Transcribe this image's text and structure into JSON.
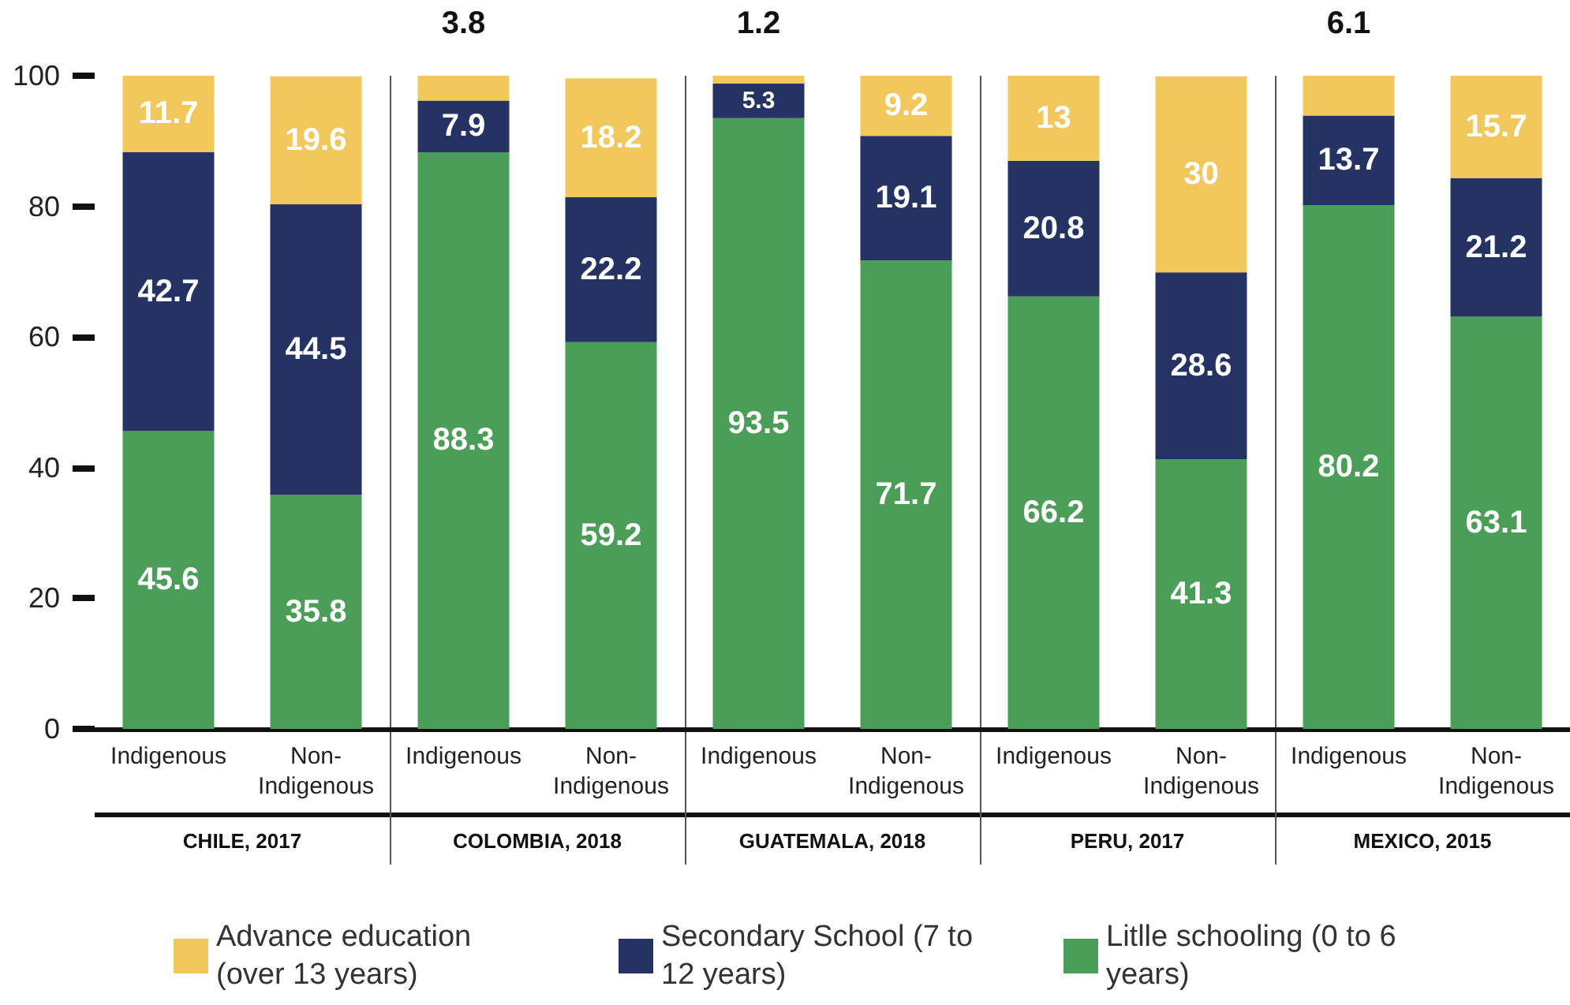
{
  "chart_data": {
    "type": "bar",
    "stacked": true,
    "data_labels": true,
    "grid": false,
    "legend": "bottom",
    "categories": [
      "Indigenous",
      "Non-Indigenous",
      "Indigenous",
      "Non-Indigenous",
      "Indigenous",
      "Non-Indigenous",
      "Indigenous",
      "Non-Indigenous",
      "Indigenous",
      "Non-Indigenous"
    ],
    "series": [
      {
        "name": "Litlle schooling (0 to 6 years)",
        "color": "#4a9e57",
        "values": [
          45.6,
          35.8,
          88.3,
          59.2,
          93.5,
          71.7,
          66.2,
          41.3,
          80.2,
          63.1
        ]
      },
      {
        "name": "Secondary School (7 to 12 years)",
        "color": "#253264",
        "values": [
          42.7,
          44.5,
          7.9,
          22.2,
          5.3,
          19.1,
          20.8,
          28.6,
          13.7,
          21.2
        ]
      },
      {
        "name": "Advance education (over 13 years)",
        "color": "#f2c75c",
        "values": [
          11.7,
          19.6,
          3.8,
          18.2,
          1.2,
          9.2,
          13,
          30,
          6.1,
          15.7
        ]
      }
    ],
    "ylim": [
      0,
      100
    ],
    "yticks": [
      0,
      20,
      40,
      60,
      80,
      100
    ],
    "annotations": [
      "CHILE, 2017",
      "COLOMBIA, 2018",
      "GUATEMALA, 2018",
      "PERU, 2017",
      "MEXICO, 2015"
    ]
  }
}
